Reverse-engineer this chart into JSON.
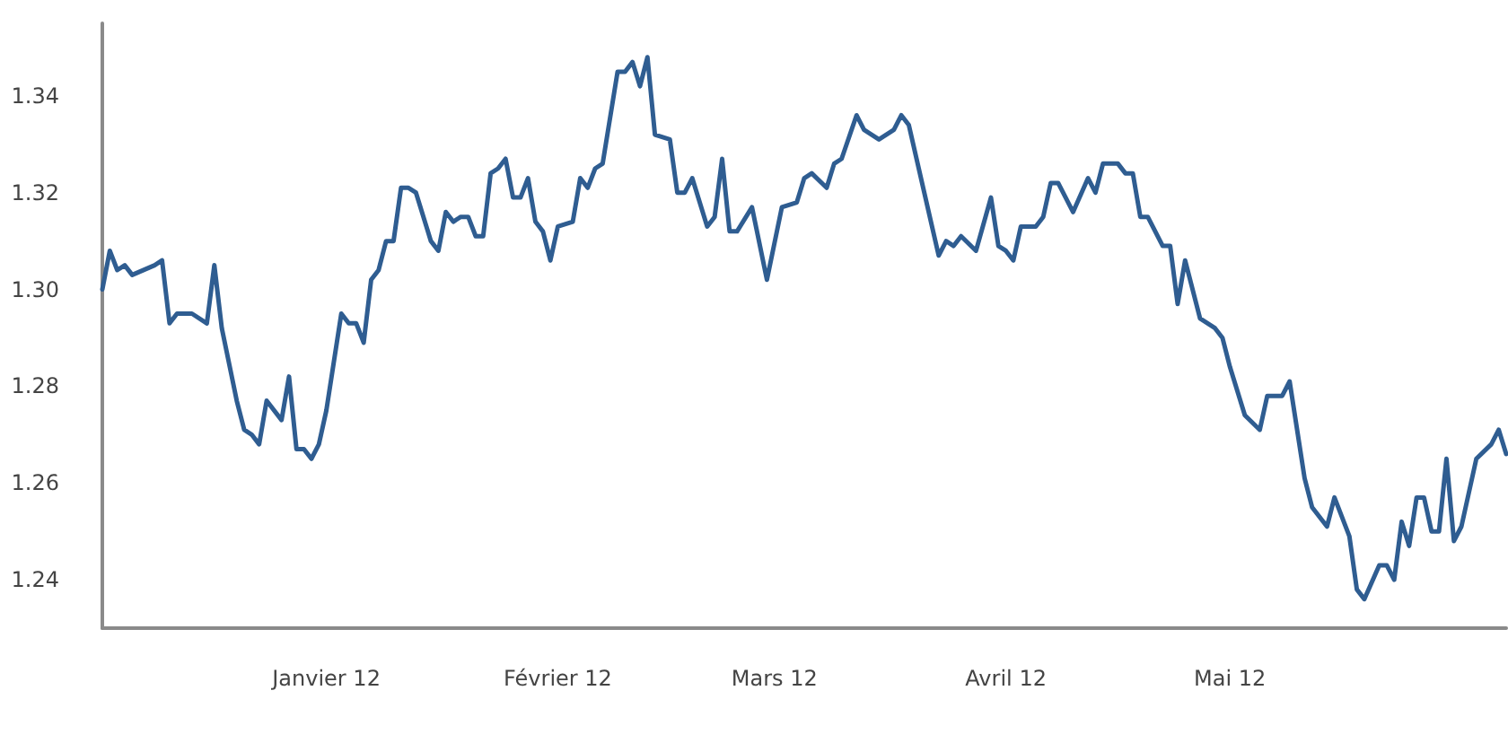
{
  "chart_data": {
    "type": "line",
    "color": "#2f5d91",
    "marker": "none",
    "line_style": "solid",
    "grid": false,
    "xlim": [
      "2011-12-02",
      "2012-06-07"
    ],
    "ylim": [
      1.23,
      1.355
    ],
    "xticks": [
      {
        "value": "2012-01-01",
        "label": "Janvier 12"
      },
      {
        "value": "2012-02-01",
        "label": "Février 12"
      },
      {
        "value": "2012-03-01",
        "label": "Mars 12"
      },
      {
        "value": "2012-04-01",
        "label": "Avril 12"
      },
      {
        "value": "2012-05-01",
        "label": "Mai 12"
      }
    ],
    "yticks": [
      1.24,
      1.26,
      1.28,
      {
        "value": 1.3,
        "label": "1.30"
      },
      1.32,
      1.34
    ],
    "x": [
      "2011-12-02",
      "2011-12-03",
      "2011-12-04",
      "2011-12-05",
      "2011-12-06",
      "2011-12-09",
      "2011-12-10",
      "2011-12-11",
      "2011-12-12",
      "2011-12-14",
      "2011-12-16",
      "2011-12-17",
      "2011-12-18",
      "2011-12-20",
      "2011-12-21",
      "2011-12-22",
      "2011-12-23",
      "2011-12-24",
      "2011-12-26",
      "2011-12-27",
      "2011-12-28",
      "2011-12-29",
      "2011-12-30",
      "2011-12-31",
      "2012-01-01",
      "2012-01-03",
      "2012-01-04",
      "2012-01-05",
      "2012-01-06",
      "2012-01-07",
      "2012-01-08",
      "2012-01-09",
      "2012-01-10",
      "2012-01-11",
      "2012-01-12",
      "2012-01-13",
      "2012-01-15",
      "2012-01-16",
      "2012-01-17",
      "2012-01-18",
      "2012-01-19",
      "2012-01-20",
      "2012-01-21",
      "2012-01-22",
      "2012-01-23",
      "2012-01-24",
      "2012-01-25",
      "2012-01-26",
      "2012-01-27",
      "2012-01-28",
      "2012-01-29",
      "2012-01-30",
      "2012-01-31",
      "2012-02-01",
      "2012-02-03",
      "2012-02-04",
      "2012-02-05",
      "2012-02-06",
      "2012-02-07",
      "2012-02-09",
      "2012-02-10",
      "2012-02-11",
      "2012-02-12",
      "2012-02-13",
      "2012-02-14",
      "2012-02-16",
      "2012-02-17",
      "2012-02-18",
      "2012-02-19",
      "2012-02-21",
      "2012-02-22",
      "2012-02-23",
      "2012-02-24",
      "2012-02-25",
      "2012-02-27",
      "2012-02-29",
      "2012-03-02",
      "2012-03-04",
      "2012-03-05",
      "2012-03-06",
      "2012-03-08",
      "2012-03-09",
      "2012-03-10",
      "2012-03-12",
      "2012-03-13",
      "2012-03-15",
      "2012-03-17",
      "2012-03-18",
      "2012-03-19",
      "2012-03-23",
      "2012-03-24",
      "2012-03-25",
      "2012-03-26",
      "2012-03-28",
      "2012-03-30",
      "2012-03-31",
      "2012-04-01",
      "2012-04-02",
      "2012-04-03",
      "2012-04-05",
      "2012-04-06",
      "2012-04-07",
      "2012-04-08",
      "2012-04-10",
      "2012-04-12",
      "2012-04-13",
      "2012-04-14",
      "2012-04-16",
      "2012-04-17",
      "2012-04-18",
      "2012-04-19",
      "2012-04-20",
      "2012-04-22",
      "2012-04-23",
      "2012-04-24",
      "2012-04-25",
      "2012-04-27",
      "2012-04-29",
      "2012-04-30",
      "2012-05-01",
      "2012-05-03",
      "2012-05-05",
      "2012-05-06",
      "2012-05-08",
      "2012-05-09",
      "2012-05-11",
      "2012-05-12",
      "2012-05-14",
      "2012-05-15",
      "2012-05-17",
      "2012-05-18",
      "2012-05-19",
      "2012-05-21",
      "2012-05-22",
      "2012-05-23",
      "2012-05-24",
      "2012-05-25",
      "2012-05-26",
      "2012-05-27",
      "2012-05-28",
      "2012-05-29",
      "2012-05-30",
      "2012-05-31",
      "2012-06-01",
      "2012-06-03",
      "2012-06-05",
      "2012-06-06",
      "2012-06-07"
    ],
    "values": [
      1.3,
      1.308,
      1.304,
      1.305,
      1.303,
      1.305,
      1.306,
      1.293,
      1.295,
      1.295,
      1.293,
      1.305,
      1.292,
      1.277,
      1.271,
      1.27,
      1.268,
      1.277,
      1.273,
      1.282,
      1.267,
      1.267,
      1.265,
      1.268,
      1.275,
      1.295,
      1.293,
      1.293,
      1.289,
      1.302,
      1.304,
      1.31,
      1.31,
      1.321,
      1.321,
      1.32,
      1.31,
      1.308,
      1.316,
      1.314,
      1.315,
      1.315,
      1.311,
      1.311,
      1.324,
      1.325,
      1.327,
      1.319,
      1.319,
      1.323,
      1.314,
      1.312,
      1.306,
      1.313,
      1.314,
      1.323,
      1.321,
      1.325,
      1.326,
      1.345,
      1.345,
      1.347,
      1.342,
      1.348,
      1.332,
      1.331,
      1.32,
      1.32,
      1.323,
      1.313,
      1.315,
      1.327,
      1.312,
      1.312,
      1.317,
      1.302,
      1.317,
      1.318,
      1.323,
      1.324,
      1.321,
      1.326,
      1.327,
      1.336,
      1.333,
      1.331,
      1.333,
      1.336,
      1.334,
      1.307,
      1.31,
      1.309,
      1.311,
      1.308,
      1.319,
      1.309,
      1.308,
      1.306,
      1.313,
      1.313,
      1.315,
      1.322,
      1.322,
      1.316,
      1.323,
      1.32,
      1.326,
      1.326,
      1.324,
      1.324,
      1.315,
      1.315,
      1.309,
      1.309,
      1.297,
      1.306,
      1.294,
      1.292,
      1.29,
      1.284,
      1.274,
      1.271,
      1.278,
      1.278,
      1.281,
      1.261,
      1.255,
      1.251,
      1.257,
      1.249,
      1.238,
      1.236,
      1.243,
      1.243,
      1.24,
      1.252,
      1.247,
      1.257,
      1.257,
      1.25,
      1.25,
      1.265,
      1.248,
      1.251,
      1.265,
      1.268,
      1.271,
      1.266
    ]
  }
}
